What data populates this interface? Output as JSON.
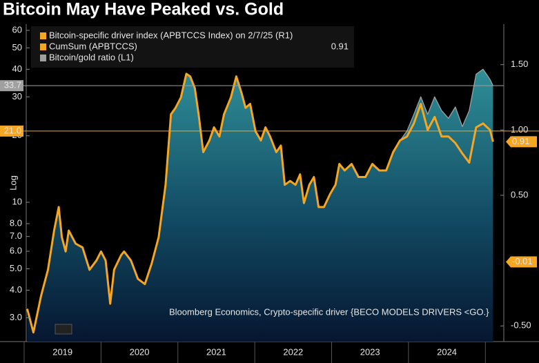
{
  "chart_data": {
    "type": "area",
    "title": "Bitcoin May Have Peaked vs. Gold",
    "note": "Bloomberg Economics, Crypto-specific driver {BECO MODELS DRIVERS <GO.}",
    "ylabel": "Log",
    "y_scale": "log",
    "x": [
      2019.04,
      2019.12,
      2019.22,
      2019.31,
      2019.39,
      2019.45,
      2019.49,
      2019.54,
      2019.58,
      2019.67,
      2019.76,
      2019.85,
      2019.94,
      2020.0,
      2020.06,
      2020.12,
      2020.17,
      2020.26,
      2020.3,
      2020.39,
      2020.48,
      2020.57,
      2020.66,
      2020.75,
      2020.84,
      2020.91,
      2020.97,
      2021.04,
      2021.11,
      2021.16,
      2021.22,
      2021.27,
      2021.33,
      2021.41,
      2021.47,
      2021.54,
      2021.6,
      2021.69,
      2021.76,
      2021.83,
      2021.88,
      2021.94,
      2022.01,
      2022.08,
      2022.14,
      2022.2,
      2022.28,
      2022.34,
      2022.39,
      2022.46,
      2022.53,
      2022.59,
      2022.64,
      2022.71,
      2022.77,
      2022.83,
      2022.9,
      2022.98,
      2023.05,
      2023.1,
      2023.17,
      2023.26,
      2023.35,
      2023.44,
      2023.53,
      2023.62,
      2023.71,
      2023.8,
      2023.89,
      2023.98,
      2024.07,
      2024.16,
      2024.25,
      2024.34,
      2024.43,
      2024.52,
      2024.61,
      2024.7,
      2024.79,
      2024.88,
      2024.97,
      2025.06,
      2025.1
    ],
    "xlim": [
      2019,
      2025.24
    ],
    "xticks": [
      2019,
      2020,
      2021,
      2022,
      2023,
      2024
    ],
    "ylim": [
      2.34,
      64
    ],
    "yticks": [
      {
        "value": 3,
        "label": "3.0"
      },
      {
        "value": 4,
        "label": "4.0"
      },
      {
        "value": 5,
        "label": "5.0"
      },
      {
        "value": 6,
        "label": "6.0"
      },
      {
        "value": 7,
        "label": "7.0"
      },
      {
        "value": 8,
        "label": "8.0"
      },
      10,
      20,
      30,
      40,
      50,
      60
    ],
    "y2lim": [
      -0.62,
      1.81
    ],
    "y2ticks": [
      {
        "value": -0.5,
        "label": "-0.50"
      },
      {
        "value": 0.5,
        "label": "0.50"
      },
      {
        "value": 1,
        "label": "1.00"
      },
      {
        "value": 1.5,
        "label": "1.50"
      }
    ],
    "driver_index": {
      "name": "Bitcoin-specific driver index (APBTCCS Index) on 2/7/25 (R1)",
      "color": "#f5a623"
    },
    "series": [
      {
        "name": "CumSum (APBTCCS)",
        "color": "#f5a623",
        "axis": "y2",
        "last_value": 0.91,
        "values": [
          -0.37,
          -0.55,
          -0.27,
          -0.07,
          0.23,
          0.41,
          0.18,
          0.07,
          0.23,
          0.13,
          0.1,
          -0.07,
          0.0,
          0.07,
          0.0,
          -0.33,
          -0.07,
          0.04,
          0.07,
          0.0,
          -0.14,
          -0.18,
          -0.02,
          0.18,
          0.58,
          1.12,
          1.17,
          1.25,
          1.43,
          1.41,
          1.32,
          1.12,
          0.83,
          0.92,
          1.02,
          0.95,
          1.12,
          1.25,
          1.41,
          1.28,
          1.17,
          1.2,
          0.99,
          0.92,
          1.02,
          0.95,
          0.83,
          0.88,
          0.58,
          0.61,
          0.58,
          0.66,
          0.44,
          0.58,
          0.64,
          0.41,
          0.41,
          0.51,
          0.58,
          0.74,
          0.69,
          0.74,
          0.64,
          0.64,
          0.74,
          0.69,
          0.69,
          0.83,
          0.92,
          0.95,
          1.05,
          1.2,
          1.0,
          1.1,
          0.95,
          0.95,
          0.9,
          0.82,
          0.75,
          1.02,
          1.05,
          1.0,
          0.91
        ]
      },
      {
        "name": "Bitcoin/gold ratio (L1)",
        "color": "#a0a0a0",
        "fill": "#2f8f98",
        "values": [
          3.3,
          2.6,
          3.8,
          5,
          7.5,
          9.5,
          7,
          6,
          7.5,
          6.5,
          6.3,
          5,
          5.5,
          6,
          5.5,
          3.5,
          5,
          5.8,
          6,
          5.5,
          4.5,
          4.3,
          5.3,
          7,
          12,
          25,
          27,
          30,
          38,
          37,
          33,
          25,
          17,
          19,
          22,
          20,
          25,
          30,
          37,
          31,
          27,
          28,
          21,
          19,
          22,
          20,
          17,
          18,
          12,
          12.5,
          12,
          13.5,
          10,
          12,
          13,
          9.5,
          9.5,
          11,
          12,
          15,
          14,
          15,
          13,
          13,
          15,
          14,
          14,
          17,
          19,
          21,
          25,
          30,
          25,
          30,
          26,
          24,
          27,
          22,
          26,
          38,
          40,
          36,
          33.7
        ]
      }
    ],
    "y_markers": [
      {
        "value": 33.7,
        "color": "#a0a0a0"
      },
      {
        "value": 21,
        "label": "21.0",
        "color": "#f5a623"
      }
    ],
    "y2_markers": [
      {
        "value": 0.91,
        "color": "#f5a623"
      },
      {
        "value": -0.01,
        "color": "#f5a623"
      }
    ]
  }
}
